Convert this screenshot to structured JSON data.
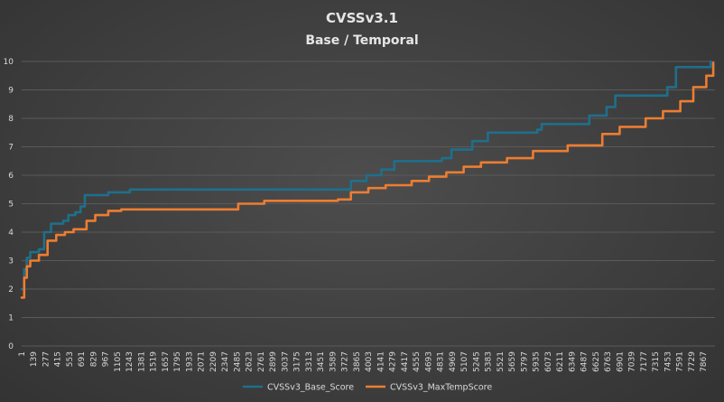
{
  "chart_data": {
    "type": "line",
    "title": "CVSSv3.1",
    "subtitle": "Base / Temporal",
    "xlabel": "",
    "ylabel": "",
    "ylim": [
      0,
      10
    ],
    "yticks": [
      0,
      1,
      2,
      3,
      4,
      5,
      6,
      7,
      8,
      9,
      10
    ],
    "xlim": [
      1,
      8000
    ],
    "x_tick_labels": [
      "1",
      "139",
      "277",
      "415",
      "553",
      "691",
      "829",
      "967",
      "1105",
      "1243",
      "1381",
      "1519",
      "1657",
      "1795",
      "1933",
      "2071",
      "2209",
      "2347",
      "2485",
      "2623",
      "2761",
      "2899",
      "3037",
      "3175",
      "3313",
      "3451",
      "3589",
      "3727",
      "3865",
      "4003",
      "4141",
      "4279",
      "4417",
      "4555",
      "4693",
      "4831",
      "4969",
      "5107",
      "5245",
      "5383",
      "5521",
      "5659",
      "5797",
      "5935",
      "6073",
      "6211",
      "6349",
      "6487",
      "6625",
      "6763",
      "6901",
      "7039",
      "7177",
      "7315",
      "7453",
      "7591",
      "7729",
      "7867"
    ],
    "grid": "horizontal",
    "legend_position": "bottom",
    "colors": {
      "base": "#1f6f8b",
      "temporal": "#ed7d31",
      "grid": "#5a5a5a"
    },
    "series": [
      {
        "name": "CVSSv3_Base_Score",
        "points": [
          [
            1,
            2.0
          ],
          [
            30,
            2.7
          ],
          [
            60,
            3.1
          ],
          [
            100,
            3.3
          ],
          [
            200,
            3.4
          ],
          [
            260,
            4.0
          ],
          [
            340,
            4.3
          ],
          [
            480,
            4.4
          ],
          [
            540,
            4.6
          ],
          [
            620,
            4.7
          ],
          [
            680,
            4.9
          ],
          [
            730,
            5.3
          ],
          [
            1000,
            5.4
          ],
          [
            1250,
            5.5
          ],
          [
            3700,
            5.5
          ],
          [
            3800,
            5.8
          ],
          [
            3980,
            6.0
          ],
          [
            4150,
            6.2
          ],
          [
            4300,
            6.5
          ],
          [
            4850,
            6.6
          ],
          [
            4960,
            6.9
          ],
          [
            5200,
            7.2
          ],
          [
            5380,
            7.5
          ],
          [
            5950,
            7.6
          ],
          [
            6000,
            7.8
          ],
          [
            6550,
            8.1
          ],
          [
            6750,
            8.4
          ],
          [
            6850,
            8.8
          ],
          [
            7450,
            9.1
          ],
          [
            7550,
            9.8
          ],
          [
            7820,
            9.8
          ],
          [
            7950,
            10.0
          ]
        ]
      },
      {
        "name": "CVSSv3_MaxTempScore",
        "points": [
          [
            1,
            1.7
          ],
          [
            30,
            2.4
          ],
          [
            60,
            2.8
          ],
          [
            100,
            3.0
          ],
          [
            200,
            3.2
          ],
          [
            300,
            3.7
          ],
          [
            400,
            3.9
          ],
          [
            500,
            4.0
          ],
          [
            600,
            4.1
          ],
          [
            750,
            4.4
          ],
          [
            850,
            4.6
          ],
          [
            1000,
            4.75
          ],
          [
            1150,
            4.8
          ],
          [
            2350,
            4.8
          ],
          [
            2500,
            5.0
          ],
          [
            2800,
            5.1
          ],
          [
            3650,
            5.15
          ],
          [
            3800,
            5.4
          ],
          [
            4000,
            5.55
          ],
          [
            4200,
            5.65
          ],
          [
            4500,
            5.8
          ],
          [
            4700,
            5.95
          ],
          [
            4900,
            6.1
          ],
          [
            5100,
            6.3
          ],
          [
            5300,
            6.45
          ],
          [
            5600,
            6.6
          ],
          [
            5900,
            6.85
          ],
          [
            6300,
            7.05
          ],
          [
            6700,
            7.45
          ],
          [
            6900,
            7.7
          ],
          [
            7200,
            8.0
          ],
          [
            7400,
            8.25
          ],
          [
            7600,
            8.6
          ],
          [
            7750,
            9.1
          ],
          [
            7900,
            9.5
          ],
          [
            7980,
            9.95
          ]
        ]
      }
    ]
  }
}
